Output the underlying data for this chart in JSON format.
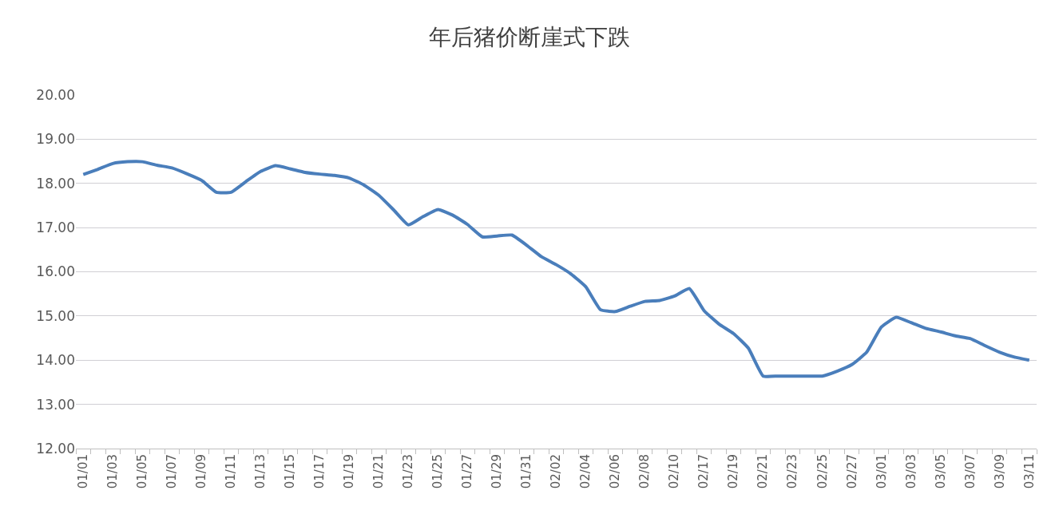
{
  "chart_data": {
    "type": "line",
    "title": "年后猪价断崖式下跌",
    "categories": [
      "01/01",
      null,
      "01/03",
      null,
      "01/05",
      null,
      "01/07",
      null,
      "01/09",
      null,
      "01/11",
      null,
      "01/13",
      null,
      "01/15",
      null,
      "01/17",
      null,
      "01/19",
      null,
      "01/21",
      null,
      "01/23",
      null,
      "01/25",
      null,
      "01/27",
      null,
      "01/29",
      null,
      "01/31",
      null,
      "02/02",
      null,
      "02/04",
      null,
      "02/06",
      null,
      "02/08",
      null,
      "02/10",
      null,
      "02/17",
      null,
      "02/19",
      null,
      "02/21",
      null,
      "02/23",
      null,
      "02/25",
      null,
      "02/27",
      null,
      "03/01",
      null,
      "03/03",
      null,
      "03/05",
      null,
      "03/07",
      null,
      "03/09",
      null,
      "03/11"
    ],
    "series": [
      {
        "color": "#4a7ebb",
        "values": [
          18.2,
          18.32,
          18.45,
          18.49,
          18.49,
          18.41,
          18.35,
          18.22,
          18.07,
          17.8,
          17.8,
          18.04,
          18.27,
          18.4,
          18.33,
          18.25,
          18.21,
          18.18,
          18.12,
          17.96,
          17.73,
          17.4,
          17.06,
          17.25,
          17.41,
          17.28,
          17.07,
          16.79,
          16.81,
          16.83,
          16.6,
          16.34,
          16.16,
          15.95,
          15.66,
          15.14,
          15.1,
          15.22,
          15.33,
          15.35,
          15.45,
          15.62,
          15.12,
          14.82,
          14.6,
          14.27,
          13.64,
          13.64,
          13.64,
          13.64,
          13.64,
          13.75,
          13.9,
          14.18,
          14.75,
          14.97,
          14.85,
          14.72,
          14.64,
          14.55,
          14.49,
          14.33,
          14.18,
          14.07,
          14.0
        ]
      }
    ],
    "ylim": [
      12,
      20
    ],
    "yticks": [
      {
        "value": 12,
        "label": "12.00"
      },
      {
        "value": 13,
        "label": "13.00"
      },
      {
        "value": 14,
        "label": "14.00"
      },
      {
        "value": 15,
        "label": "15.00"
      },
      {
        "value": 16,
        "label": "16.00"
      },
      {
        "value": 17,
        "label": "17.00"
      },
      {
        "value": 18,
        "label": "18.00"
      },
      {
        "value": 19,
        "label": "19.00"
      },
      {
        "value": 20,
        "label": "20.00"
      }
    ],
    "grid": "y",
    "marker": "none",
    "line_style": "solid"
  }
}
